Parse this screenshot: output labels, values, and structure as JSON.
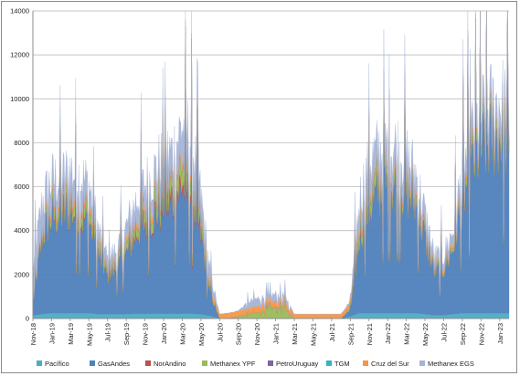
{
  "chart_data": {
    "type": "area",
    "stacked": true,
    "title": "",
    "xlabel": "",
    "ylabel": "",
    "ylim": [
      0,
      14000
    ],
    "y_ticks": [
      0,
      2000,
      4000,
      6000,
      8000,
      10000,
      12000,
      14000
    ],
    "grid": "horizontal",
    "legend_position": "bottom",
    "x_tick_labels": [
      "Nov-18",
      "Jan-19",
      "Mar-19",
      "May-19",
      "Jul-19",
      "Sep-19",
      "Nov-19",
      "Jan-20",
      "Mar-20",
      "May-20",
      "Jul-20",
      "Sep-20",
      "Nov-20",
      "Jan-21",
      "Mar-21",
      "May-21",
      "Jul-21",
      "Sep-21",
      "Nov-21",
      "Jan-22",
      "Mar-22",
      "May-22",
      "Jul-22",
      "Sep-22",
      "Nov-22",
      "Jan-23"
    ],
    "series": [
      {
        "name": "Pacífico",
        "color": "#4bacc6"
      },
      {
        "name": "GasAndes",
        "color": "#4f81bd"
      },
      {
        "name": "NorAndino",
        "color": "#c0504d"
      },
      {
        "name": "Methanex YPF",
        "color": "#9bbb59"
      },
      {
        "name": "PetroUruguay",
        "color": "#8064a2"
      },
      {
        "name": "TGM",
        "color": "#31b4c6"
      },
      {
        "name": "Cruz del Sur",
        "color": "#f79646"
      },
      {
        "name": "Methanex EGS",
        "color": "#a5b4d6"
      }
    ],
    "monthly_totals": [
      {
        "month": "Nov-18",
        "values": [
          150,
          600,
          0,
          0,
          0,
          0,
          60,
          1500
        ]
      },
      {
        "month": "Dec-18",
        "values": [
          200,
          3600,
          0,
          150,
          0,
          0,
          150,
          1200
        ]
      },
      {
        "month": "Jan-19",
        "values": [
          250,
          4300,
          50,
          350,
          0,
          0,
          250,
          1100
        ]
      },
      {
        "month": "Feb-19",
        "values": [
          250,
          4500,
          50,
          400,
          0,
          0,
          250,
          900
        ]
      },
      {
        "month": "Mar-19",
        "values": [
          250,
          4700,
          80,
          450,
          0,
          0,
          250,
          1000
        ]
      },
      {
        "month": "Apr-19",
        "values": [
          250,
          4300,
          80,
          500,
          0,
          0,
          250,
          1100
        ]
      },
      {
        "month": "May-19",
        "values": [
          250,
          4200,
          50,
          450,
          0,
          0,
          250,
          900
        ]
      },
      {
        "month": "Jun-19",
        "values": [
          200,
          2700,
          30,
          300,
          0,
          0,
          200,
          600
        ]
      },
      {
        "month": "Jul-19",
        "values": [
          200,
          1700,
          20,
          200,
          0,
          0,
          150,
          400
        ]
      },
      {
        "month": "Aug-19",
        "values": [
          200,
          2100,
          20,
          250,
          0,
          0,
          150,
          400
        ]
      },
      {
        "month": "Sep-19",
        "values": [
          200,
          2700,
          30,
          300,
          0,
          0,
          200,
          700
        ]
      },
      {
        "month": "Oct-19",
        "values": [
          220,
          3600,
          80,
          400,
          0,
          0,
          200,
          800
        ]
      },
      {
        "month": "Nov-19",
        "values": [
          220,
          4100,
          120,
          500,
          0,
          0,
          250,
          900
        ]
      },
      {
        "month": "Dec-19",
        "values": [
          220,
          4400,
          180,
          600,
          0,
          0,
          250,
          1000
        ]
      },
      {
        "month": "Jan-20",
        "values": [
          220,
          4900,
          200,
          650,
          0,
          0,
          250,
          1100
        ]
      },
      {
        "month": "Feb-20",
        "values": [
          220,
          5100,
          250,
          650,
          0,
          0,
          250,
          1100
        ]
      },
      {
        "month": "Mar-20",
        "values": [
          220,
          5700,
          350,
          800,
          0,
          0,
          250,
          1500
        ]
      },
      {
        "month": "Apr-20",
        "values": [
          220,
          5300,
          300,
          700,
          0,
          0,
          250,
          1300
        ]
      },
      {
        "month": "May-20",
        "values": [
          200,
          3600,
          150,
          450,
          0,
          0,
          200,
          900
        ]
      },
      {
        "month": "Jun-20",
        "values": [
          120,
          1000,
          0,
          150,
          0,
          0,
          150,
          600
        ]
      },
      {
        "month": "Jul-20",
        "values": [
          0,
          0,
          0,
          0,
          0,
          0,
          200,
          0
        ]
      },
      {
        "month": "Aug-20",
        "values": [
          0,
          0,
          0,
          0,
          0,
          0,
          250,
          0
        ]
      },
      {
        "month": "Sep-20",
        "values": [
          0,
          0,
          0,
          100,
          0,
          0,
          250,
          0
        ]
      },
      {
        "month": "Oct-20",
        "values": [
          0,
          0,
          0,
          200,
          0,
          0,
          250,
          300
        ]
      },
      {
        "month": "Nov-20",
        "values": [
          0,
          0,
          0,
          250,
          0,
          0,
          300,
          350
        ]
      },
      {
        "month": "Dec-20",
        "values": [
          0,
          0,
          0,
          400,
          0,
          0,
          300,
          300
        ]
      },
      {
        "month": "Jan-21",
        "values": [
          0,
          0,
          0,
          500,
          0,
          0,
          300,
          300
        ]
      },
      {
        "month": "Feb-21",
        "values": [
          0,
          0,
          0,
          500,
          0,
          0,
          250,
          300
        ]
      },
      {
        "month": "Mar-21",
        "values": [
          0,
          0,
          0,
          0,
          0,
          0,
          200,
          0
        ]
      },
      {
        "month": "Apr-21",
        "values": [
          0,
          0,
          0,
          0,
          0,
          0,
          200,
          0
        ]
      },
      {
        "month": "May-21",
        "values": [
          0,
          0,
          0,
          0,
          0,
          0,
          200,
          0
        ]
      },
      {
        "month": "Jun-21",
        "values": [
          0,
          0,
          0,
          0,
          0,
          0,
          200,
          0
        ]
      },
      {
        "month": "Jul-21",
        "values": [
          0,
          0,
          0,
          0,
          0,
          0,
          200,
          0
        ]
      },
      {
        "month": "Aug-21",
        "values": [
          0,
          0,
          0,
          0,
          0,
          0,
          200,
          0
        ]
      },
      {
        "month": "Sep-21",
        "values": [
          100,
          300,
          0,
          100,
          0,
          0,
          200,
          100
        ]
      },
      {
        "month": "Oct-21",
        "values": [
          250,
          3500,
          0,
          500,
          0,
          0,
          300,
          900
        ]
      },
      {
        "month": "Nov-21",
        "values": [
          250,
          4800,
          0,
          650,
          0,
          0,
          300,
          1100
        ]
      },
      {
        "month": "Dec-21",
        "values": [
          250,
          5500,
          0,
          500,
          0,
          0,
          250,
          1100
        ]
      },
      {
        "month": "Jan-22",
        "values": [
          250,
          5900,
          0,
          400,
          0,
          0,
          250,
          1000
        ]
      },
      {
        "month": "Feb-22",
        "values": [
          250,
          5900,
          0,
          400,
          0,
          0,
          250,
          1000
        ]
      },
      {
        "month": "Mar-22",
        "values": [
          250,
          5600,
          0,
          350,
          0,
          0,
          250,
          900
        ]
      },
      {
        "month": "Apr-22",
        "values": [
          250,
          5000,
          0,
          300,
          0,
          0,
          250,
          800
        ]
      },
      {
        "month": "May-22",
        "values": [
          200,
          3500,
          0,
          200,
          0,
          0,
          200,
          600
        ]
      },
      {
        "month": "Jun-22",
        "values": [
          150,
          2000,
          0,
          100,
          0,
          0,
          150,
          400
        ]
      },
      {
        "month": "Jul-22",
        "values": [
          150,
          2100,
          0,
          100,
          0,
          0,
          150,
          400
        ]
      },
      {
        "month": "Aug-22",
        "values": [
          200,
          3000,
          0,
          150,
          0,
          0,
          150,
          500
        ]
      },
      {
        "month": "Sep-22",
        "values": [
          250,
          5200,
          0,
          250,
          0,
          0,
          200,
          700
        ]
      },
      {
        "month": "Oct-22",
        "values": [
          250,
          6700,
          0,
          350,
          0,
          0,
          200,
          800
        ]
      },
      {
        "month": "Nov-22",
        "values": [
          250,
          7500,
          0,
          400,
          0,
          0,
          200,
          900
        ]
      },
      {
        "month": "Dec-22",
        "values": [
          250,
          7900,
          0,
          400,
          0,
          0,
          200,
          900
        ]
      },
      {
        "month": "Jan-23",
        "values": [
          250,
          8100,
          0,
          400,
          0,
          0,
          200,
          900
        ]
      },
      {
        "month": "Feb-23",
        "values": [
          250,
          8000,
          0,
          400,
          0,
          0,
          200,
          800
        ]
      }
    ]
  }
}
